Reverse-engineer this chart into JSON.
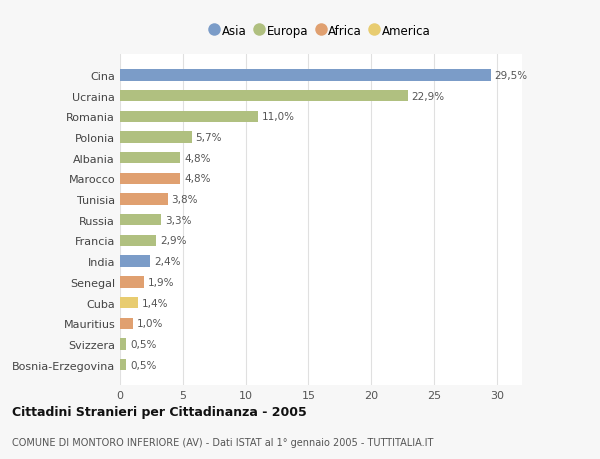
{
  "countries": [
    "Cina",
    "Ucraina",
    "Romania",
    "Polonia",
    "Albania",
    "Marocco",
    "Tunisia",
    "Russia",
    "Francia",
    "India",
    "Senegal",
    "Cuba",
    "Mauritius",
    "Svizzera",
    "Bosnia-Erzegovina"
  ],
  "values": [
    29.5,
    22.9,
    11.0,
    5.7,
    4.8,
    4.8,
    3.8,
    3.3,
    2.9,
    2.4,
    1.9,
    1.4,
    1.0,
    0.5,
    0.5
  ],
  "labels": [
    "29,5%",
    "22,9%",
    "11,0%",
    "5,7%",
    "4,8%",
    "4,8%",
    "3,8%",
    "3,3%",
    "2,9%",
    "2,4%",
    "1,9%",
    "1,4%",
    "1,0%",
    "0,5%",
    "0,5%"
  ],
  "continents": [
    "Asia",
    "Europa",
    "Europa",
    "Europa",
    "Europa",
    "Africa",
    "Africa",
    "Europa",
    "Europa",
    "Asia",
    "Africa",
    "America",
    "Africa",
    "Europa",
    "Europa"
  ],
  "continent_colors": {
    "Asia": "#7b9cc8",
    "Europa": "#b0c080",
    "Africa": "#e0a070",
    "America": "#e8cc70"
  },
  "legend_order": [
    "Asia",
    "Europa",
    "Africa",
    "America"
  ],
  "title": "Cittadini Stranieri per Cittadinanza - 2005",
  "subtitle": "COMUNE DI MONTORO INFERIORE (AV) - Dati ISTAT al 1° gennaio 2005 - TUTTITALIA.IT",
  "xlim": [
    0,
    32
  ],
  "xticks": [
    0,
    5,
    10,
    15,
    20,
    25,
    30
  ],
  "bg_color": "#f7f7f7",
  "plot_bg_color": "#ffffff",
  "grid_color": "#e0e0e0",
  "bar_height": 0.55
}
